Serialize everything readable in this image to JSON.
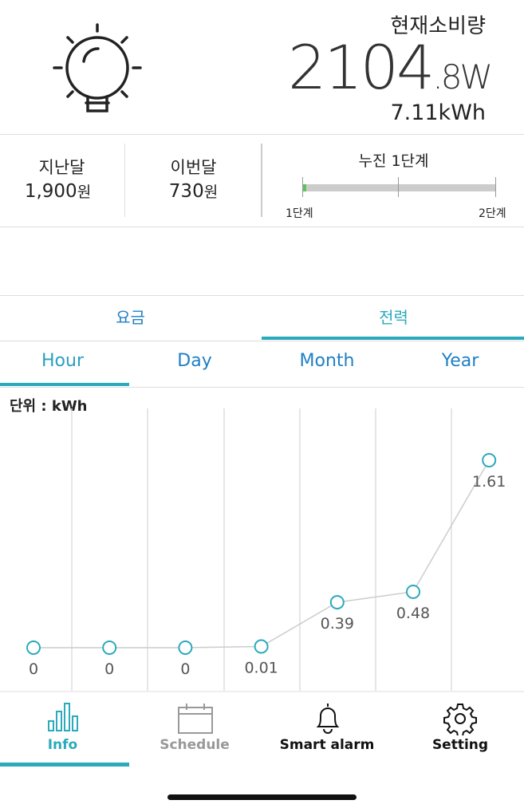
{
  "header": {
    "title": "현재소비량",
    "power_integer": "2104",
    "power_fraction": ".8",
    "power_unit": "W",
    "energy": "7.11kWh"
  },
  "summary": {
    "last_month": {
      "label": "지난달",
      "value": "1,900",
      "unit": "원"
    },
    "this_month": {
      "label": "이번달",
      "value": "730",
      "unit": "원"
    },
    "tier": {
      "label": "누진 1단계",
      "start": "1단계",
      "end": "2단계"
    }
  },
  "tabs": [
    "요금",
    "전력"
  ],
  "subtabs": [
    "Hour",
    "Day",
    "Month",
    "Year"
  ],
  "chart_data": {
    "type": "line",
    "unit_label": "단위 : kWh",
    "color": "#2aaabb",
    "values": [
      0,
      0,
      0,
      0.01,
      0.39,
      0.48,
      1.61
    ]
  },
  "nav": [
    "Info",
    "Schedule",
    "Smart alarm",
    "Setting"
  ]
}
